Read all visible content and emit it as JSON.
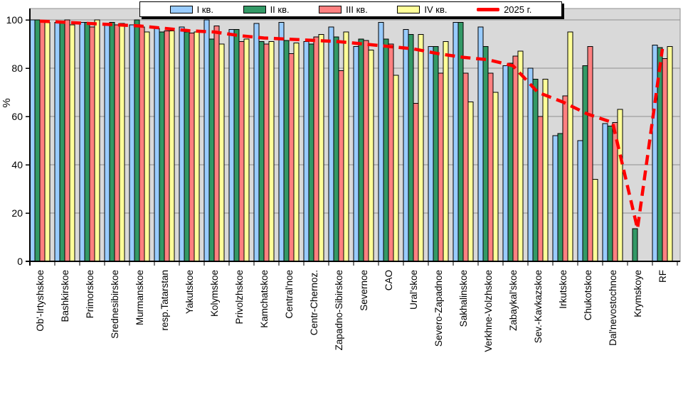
{
  "chart_data": {
    "type": "bar",
    "title": "",
    "ylabel": "%",
    "ylim": [
      0,
      100
    ],
    "yticks": [
      0,
      20,
      40,
      60,
      80,
      100
    ],
    "grid": true,
    "legend_position": "top",
    "categories": [
      "Ob'-Irtyshskoe",
      "Bashkirskoe",
      "Primorskoe",
      "Srednesibirskoe",
      "Murmanskoe",
      "resp.Tatarstan",
      "Yakutskoe",
      "Kolymskoe",
      "Privolzhskoe",
      "Kamchatskoe",
      "Central'noe",
      "Centr-Chernoz.",
      "Zapadno-Sibirskoe",
      "Severnoe",
      "CAO",
      "Ural'skoe",
      "Severo-Zapadnoe",
      "Sakhalinskoe",
      "Verkhne-Volzhskoe",
      "Zabaykal'skoe",
      "Sev.-Kavkazskoe",
      "Irkutskoe",
      "Chukotskoe",
      "Dal'nevostochnoe",
      "Krymskoye",
      "RF"
    ],
    "series": [
      {
        "name": "I кв.",
        "color": "#99CCFF",
        "values": [
          100,
          99,
          99,
          98.5,
          98,
          96.5,
          97,
          100,
          96,
          98.5,
          99,
          91,
          97,
          89,
          99,
          96,
          89,
          99,
          97,
          81,
          80,
          52,
          50,
          57,
          null,
          89.5
        ]
      },
      {
        "name": "II кв.",
        "color": "#339966",
        "values": [
          100,
          99,
          99,
          99,
          100,
          95,
          95,
          92,
          96,
          91,
          91.5,
          90,
          93,
          92,
          92,
          94,
          89,
          99,
          89,
          82,
          75.5,
          53,
          81,
          56,
          13.5,
          88.5
        ]
      },
      {
        "name": "III кв.",
        "color": "#FF8080",
        "values": [
          99,
          100,
          97,
          98,
          97,
          95.5,
          94.5,
          97.5,
          91,
          90,
          86,
          93,
          79,
          91.5,
          90,
          65.5,
          78,
          78,
          78,
          85,
          60,
          68.5,
          89,
          57.5,
          null,
          84
        ]
      },
      {
        "name": "IV кв.",
        "color": "#FFFF99",
        "values": [
          99,
          98,
          100,
          98.5,
          95,
          95.5,
          95,
          90,
          92,
          91,
          90.5,
          94,
          95,
          87.5,
          77,
          94,
          91,
          66,
          70,
          87,
          75.5,
          95,
          34,
          63,
          null,
          89
        ]
      }
    ],
    "line_series": {
      "name": "2025 г.",
      "color": "#FF0000",
      "values": [
        99.5,
        99,
        98.5,
        98,
        97.5,
        96.5,
        95.5,
        95,
        93.5,
        92.5,
        92,
        91.5,
        91,
        90,
        89,
        88,
        86,
        84.5,
        83.5,
        81,
        70,
        66,
        61,
        57.5,
        13.5,
        88
      ]
    }
  },
  "colors": {
    "chart_bg": "#FFFFFF",
    "plot_bg": "#D9D9D9",
    "gridline": "#909090",
    "axis": "#000000",
    "text": "#000000"
  }
}
